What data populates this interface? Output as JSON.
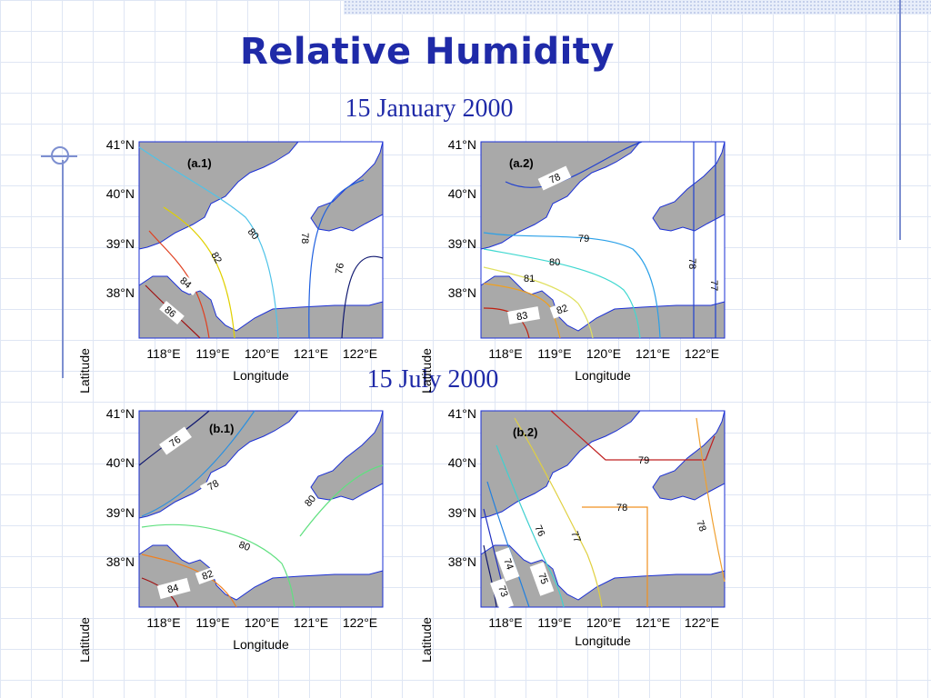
{
  "title": "Relative Humidity",
  "dates": {
    "january": "15 January 2000",
    "july": "15 July 2000"
  },
  "axes": {
    "xlabel": "Longitude",
    "ylabel": "Latitude",
    "lon_ticks": [
      "118°E",
      "119°E",
      "120°E",
      "121°E",
      "122°E"
    ],
    "lat_ticks": [
      "41°N",
      "40°N",
      "39°N",
      "38°N"
    ]
  },
  "colors": {
    "land": "#a9a9a9",
    "sea": "#ffffff",
    "coast": "#1a2fd6",
    "title_blue": "#1f2aa8"
  },
  "panels": [
    {
      "id": "a1",
      "label": "(a.1)",
      "contours": [
        {
          "value": "80",
          "color": "#4fc3e8"
        },
        {
          "value": "82",
          "color": "#e0d000"
        },
        {
          "value": "84",
          "color": "#e04020"
        },
        {
          "value": "86",
          "color": "#a01010"
        },
        {
          "value": "78",
          "color": "#2060e0"
        },
        {
          "value": "76",
          "color": "#101870"
        }
      ]
    },
    {
      "id": "a2",
      "label": "(a.2)",
      "contours": [
        {
          "value": "78",
          "color": "#2040d0"
        },
        {
          "value": "79",
          "color": "#2aa0e8"
        },
        {
          "value": "80",
          "color": "#40d8d0"
        },
        {
          "value": "81",
          "color": "#e0e060"
        },
        {
          "value": "82",
          "color": "#f0a020"
        },
        {
          "value": "83",
          "color": "#c02010"
        },
        {
          "value": "78",
          "color": "#2040d0"
        },
        {
          "value": "77",
          "color": "#2040d0"
        }
      ]
    },
    {
      "id": "b1",
      "label": "(b.1)",
      "contours": [
        {
          "value": "76",
          "color": "#101870"
        },
        {
          "value": "78",
          "color": "#2a90e0"
        },
        {
          "value": "80",
          "color": "#60e080"
        },
        {
          "value": "80",
          "color": "#60e080"
        },
        {
          "value": "82",
          "color": "#f08020"
        },
        {
          "value": "84",
          "color": "#a01010"
        }
      ]
    },
    {
      "id": "b2",
      "label": "(b.2)",
      "contours": [
        {
          "value": "79",
          "color": "#c02020"
        },
        {
          "value": "78",
          "color": "#f09020"
        },
        {
          "value": "77",
          "color": "#e0d040"
        },
        {
          "value": "76",
          "color": "#40d0d0"
        },
        {
          "value": "75",
          "color": "#2080e0"
        },
        {
          "value": "74",
          "color": "#2030c0"
        },
        {
          "value": "73",
          "color": "#101870"
        },
        {
          "value": "78",
          "color": "#f0a030"
        }
      ]
    }
  ]
}
